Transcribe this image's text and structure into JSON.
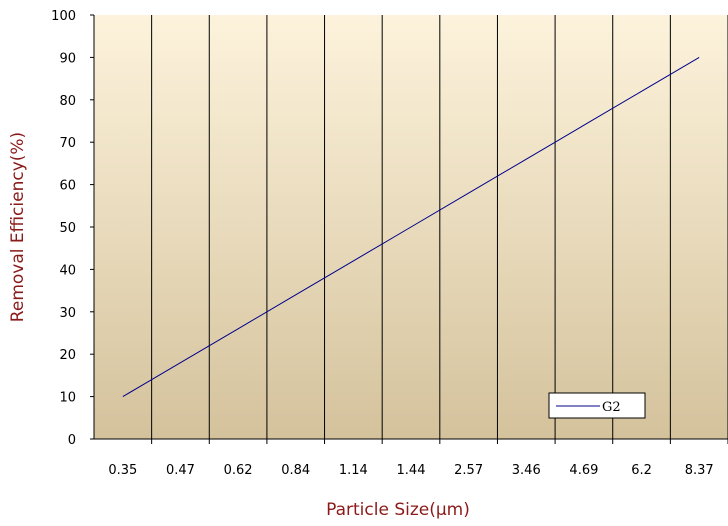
{
  "chart_data": {
    "type": "line",
    "categories": [
      "0.35",
      "0.47",
      "0.62",
      "0.84",
      "1.14",
      "1.44",
      "2.57",
      "3.46",
      "4.69",
      "6.2",
      "8.37"
    ],
    "series": [
      {
        "name": "G2",
        "values": [
          10,
          18,
          26,
          34,
          42,
          50,
          58,
          66,
          74,
          82,
          90
        ]
      }
    ],
    "xlabel": "Particle Size(μm)",
    "ylabel": "Removal Efficiency(%)",
    "ylim": [
      0,
      100
    ],
    "yticks": [
      "0",
      "10",
      "20",
      "30",
      "40",
      "50",
      "60",
      "70",
      "80",
      "90",
      "100"
    ],
    "grid": "vertical",
    "legend": "bottom-right",
    "colors": {
      "series": "#00008b",
      "axis_title": "#8b1a1a",
      "plot_top": "#fdf3dc",
      "plot_bottom": "#d4c29c"
    }
  }
}
